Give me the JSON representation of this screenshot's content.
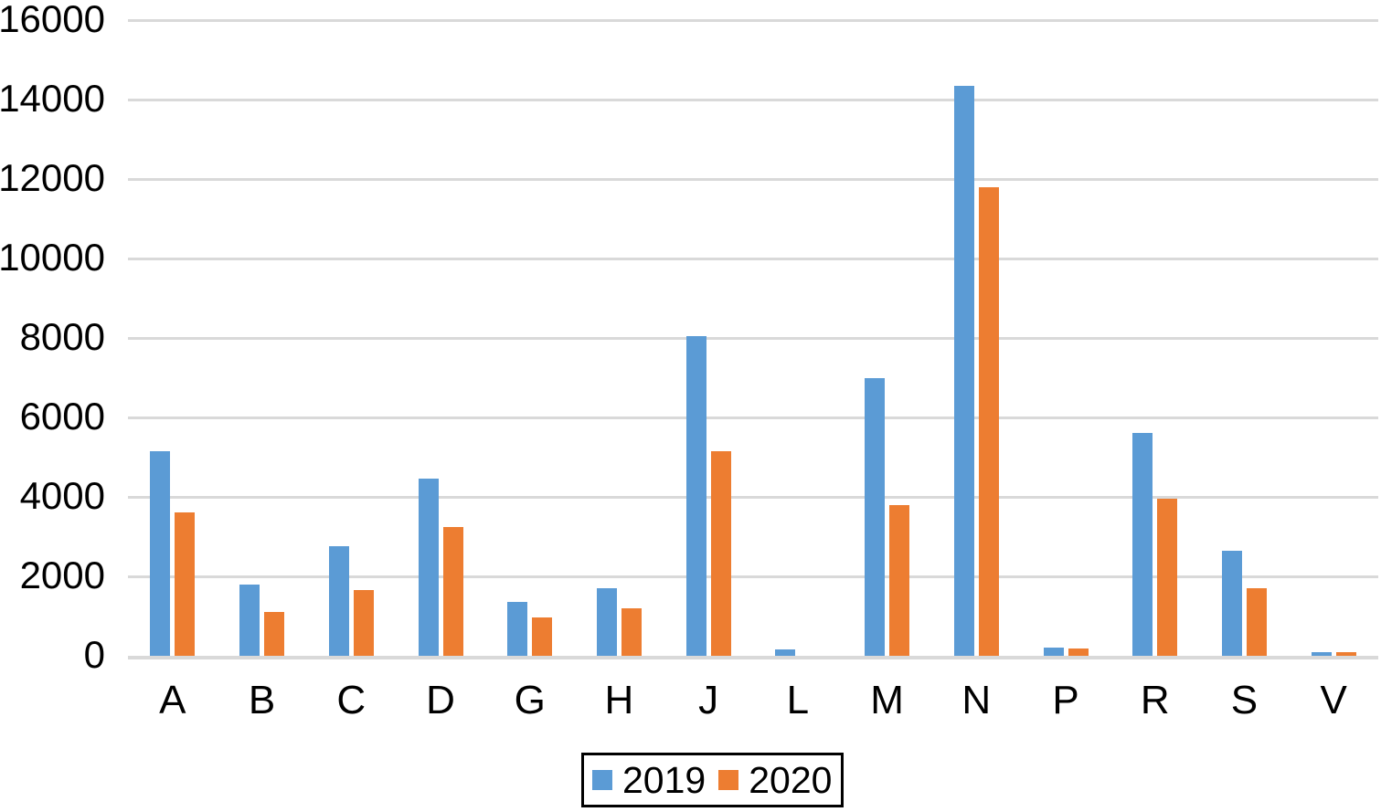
{
  "chart_data": {
    "type": "bar",
    "title": "",
    "xlabel": "",
    "ylabel": "",
    "categories": [
      "A",
      "B",
      "C",
      "D",
      "G",
      "H",
      "J",
      "L",
      "M",
      "N",
      "P",
      "R",
      "S",
      "V"
    ],
    "series": [
      {
        "name": "2019",
        "color": "#5B9BD5",
        "values": [
          5150,
          1800,
          2750,
          4450,
          1350,
          1700,
          8050,
          160,
          7000,
          14350,
          200,
          5600,
          2650,
          100
        ]
      },
      {
        "name": "2020",
        "color": "#ED7D31",
        "values": [
          3600,
          1100,
          1650,
          3250,
          975,
          1200,
          5150,
          0,
          3800,
          11800,
          190,
          3950,
          1700,
          90
        ]
      }
    ],
    "ylim": [
      0,
      16000
    ],
    "ytick_step": 2000,
    "ytick_labels": [
      "0",
      "2000",
      "4000",
      "6000",
      "8000",
      "10000",
      "12000",
      "14000",
      "16000"
    ],
    "grid": true,
    "gridline_color": "#D9D9D9",
    "axis_line_color": "#D9D9D9",
    "text_color": "#000000",
    "background_color": "#FFFFFF",
    "legend_position": "bottom-center"
  }
}
